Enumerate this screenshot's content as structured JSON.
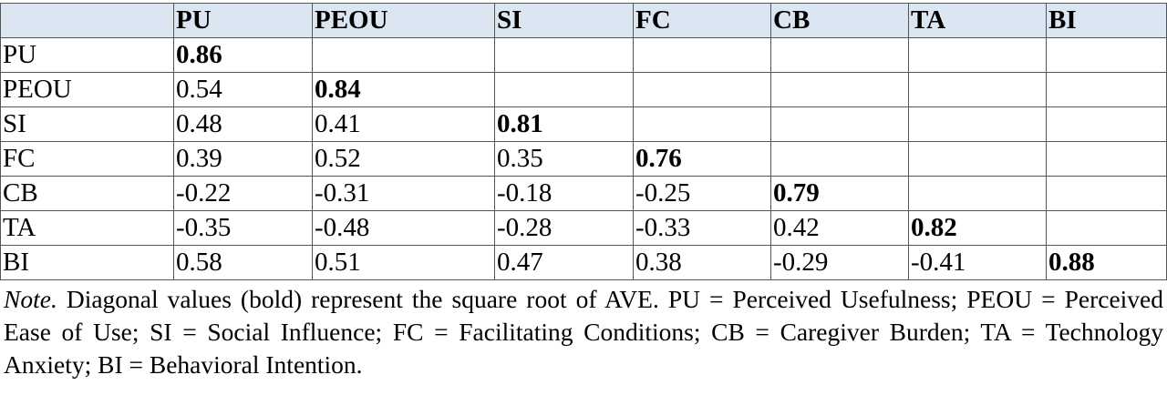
{
  "table": {
    "columns": [
      "PU",
      "PEOU",
      "SI",
      "FC",
      "CB",
      "TA",
      "BI"
    ],
    "rows": [
      {
        "label": "PU",
        "values": [
          0.86
        ]
      },
      {
        "label": "PEOU",
        "values": [
          0.54,
          0.84
        ]
      },
      {
        "label": "SI",
        "values": [
          0.48,
          0.41,
          0.81
        ]
      },
      {
        "label": "FC",
        "values": [
          0.39,
          0.52,
          0.35,
          0.76
        ]
      },
      {
        "label": "CB",
        "values": [
          -0.22,
          -0.31,
          -0.18,
          -0.25,
          0.79
        ]
      },
      {
        "label": "TA",
        "values": [
          -0.35,
          -0.48,
          -0.28,
          -0.33,
          0.42,
          0.82
        ]
      },
      {
        "label": "BI",
        "values": [
          0.58,
          0.51,
          0.47,
          0.38,
          -0.29,
          -0.41,
          0.88
        ]
      }
    ]
  },
  "note": {
    "label": "Note.",
    "text": "Diagonal values (bold) represent the square root of AVE. PU = Perceived Usefulness; PEOU = Perceived Ease of Use; SI = Social Influence; FC = Facilitating Conditions; CB = Caregiver Burden; TA = Technology Anxiety; BI = Behavioral Intention."
  }
}
